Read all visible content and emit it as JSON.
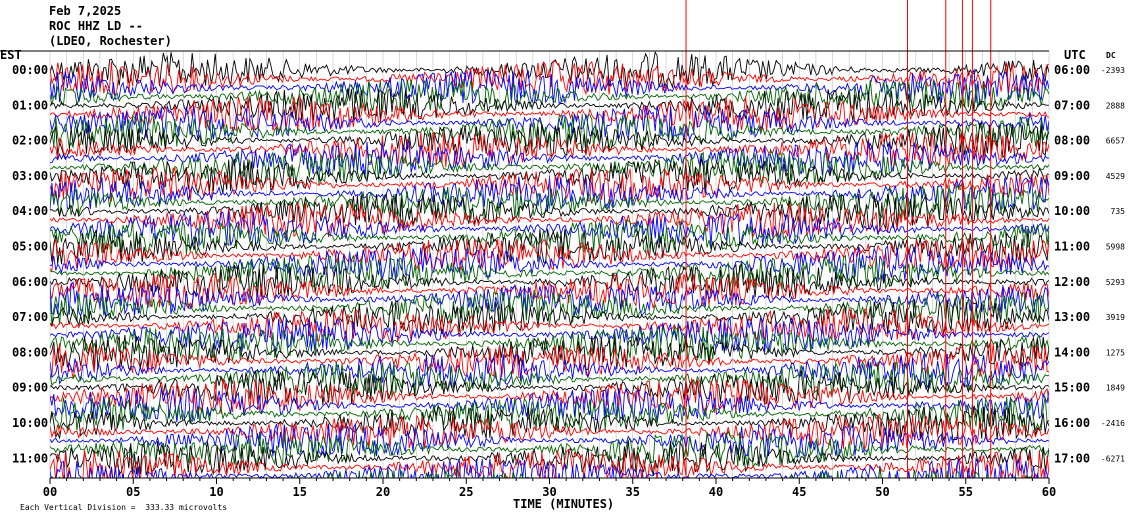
{
  "header": {
    "date": "Feb 7,2025",
    "station": "ROC HHZ LD --",
    "network": "(LDEO, Rochester)"
  },
  "left_axis_title": "EST",
  "right_axis_title": "UTC",
  "dc_title": "DC",
  "footer": {
    "xlabel": "TIME (MINUTES)",
    "scale_note": "Each Vertical Division =  333.33 microvolts"
  },
  "chart_data": {
    "type": "line",
    "title": "ROC HHZ LD --",
    "xlabel": "TIME (MINUTES)",
    "xlim": [
      0,
      60
    ],
    "x_ticks": [
      "00",
      "05",
      "10",
      "15",
      "20",
      "25",
      "30",
      "35",
      "40",
      "45",
      "50",
      "55",
      "60"
    ],
    "rows": [
      {
        "est": "00:00",
        "utc": "06:00",
        "dc": "-2393"
      },
      {
        "est": "01:00",
        "utc": "07:00",
        "dc": "2888"
      },
      {
        "est": "02:00",
        "utc": "08:00",
        "dc": "6657"
      },
      {
        "est": "03:00",
        "utc": "09:00",
        "dc": "4529"
      },
      {
        "est": "04:00",
        "utc": "10:00",
        "dc": "735"
      },
      {
        "est": "05:00",
        "utc": "11:00",
        "dc": "5998"
      },
      {
        "est": "06:00",
        "utc": "12:00",
        "dc": "5293"
      },
      {
        "est": "07:00",
        "utc": "13:00",
        "dc": "3919"
      },
      {
        "est": "08:00",
        "utc": "14:00",
        "dc": "1275"
      },
      {
        "est": "09:00",
        "utc": "15:00",
        "dc": "1849"
      },
      {
        "est": "10:00",
        "utc": "16:00",
        "dc": "-2416"
      },
      {
        "est": "11:00",
        "utc": "17:00",
        "dc": "-6271"
      }
    ],
    "trace_colors": [
      "#000000",
      "#ff0000",
      "#0000ff",
      "#006400"
    ],
    "grid": true
  }
}
